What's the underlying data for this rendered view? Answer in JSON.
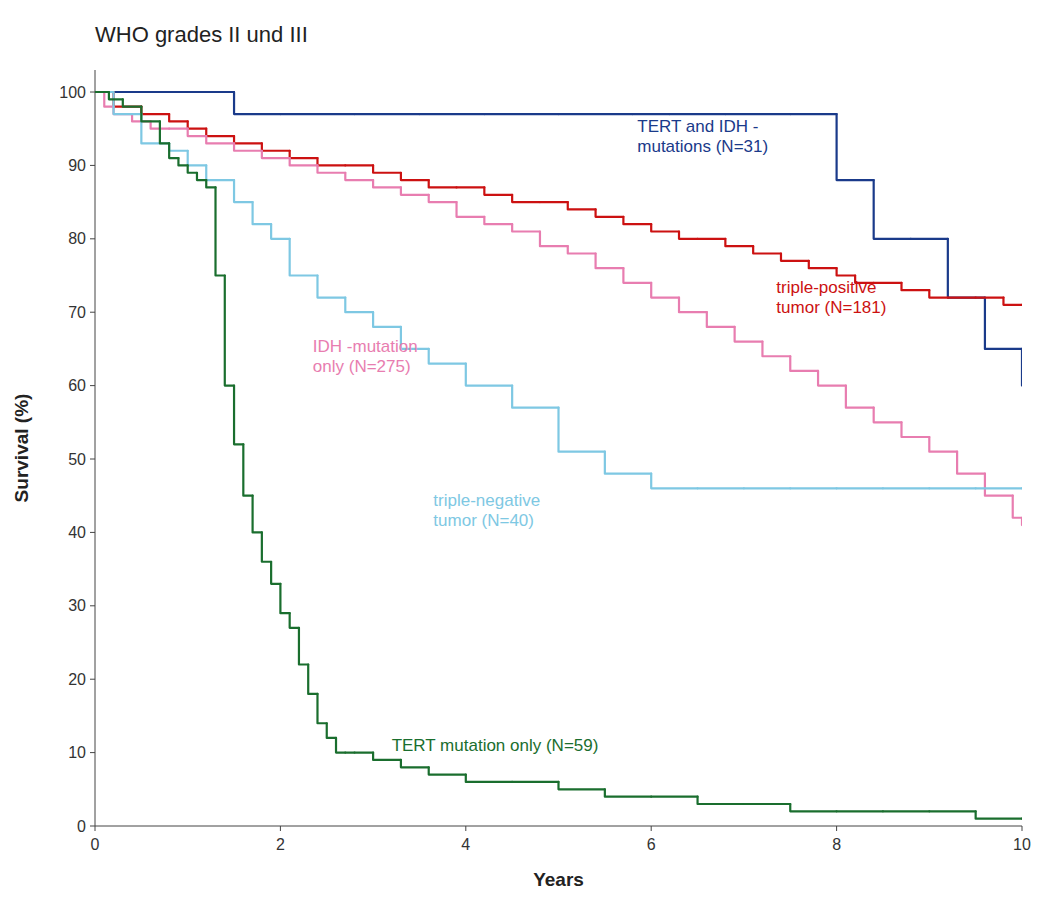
{
  "chart_data": {
    "type": "step",
    "title": "WHO grades II und III",
    "x_label": "Years",
    "y_label": "Survival (%)",
    "xlim": [
      0,
      10
    ],
    "ylim": [
      0,
      103
    ],
    "xticks": [
      0,
      2,
      4,
      6,
      8,
      10
    ],
    "yticks": [
      0,
      10,
      20,
      30,
      40,
      50,
      60,
      70,
      80,
      90,
      100
    ],
    "grid": false,
    "series": [
      {
        "color": "#1a3a8a",
        "x": [
          0,
          0.3,
          0.5,
          1.0,
          1.5,
          2.0,
          2.8,
          3.5,
          4.2,
          5.0,
          5.8,
          6.2,
          6.8,
          7.5,
          8.0,
          8.4,
          8.8,
          9.2,
          9.6,
          10.0
        ],
        "values": [
          100,
          100,
          100,
          100,
          97,
          97,
          97,
          97,
          97,
          97,
          97,
          97,
          97,
          97,
          88,
          80,
          80,
          72,
          65,
          60
        ]
      },
      {
        "color": "#cc1111",
        "x": [
          0,
          0.2,
          0.5,
          0.8,
          1.0,
          1.2,
          1.5,
          1.8,
          2.1,
          2.4,
          2.7,
          3.0,
          3.3,
          3.6,
          3.9,
          4.2,
          4.5,
          4.8,
          5.1,
          5.4,
          5.7,
          6.0,
          6.3,
          6.5,
          6.8,
          7.1,
          7.4,
          7.7,
          8.0,
          8.2,
          8.4,
          8.7,
          9.0,
          9.2,
          9.5,
          9.8,
          10.0
        ],
        "values": [
          100,
          98,
          97,
          96,
          95,
          94,
          93,
          92,
          91,
          90,
          90,
          89,
          88,
          87,
          87,
          86,
          85,
          85,
          84,
          83,
          82,
          81,
          80,
          80,
          79,
          78,
          77,
          76,
          75,
          74,
          74,
          73,
          72,
          72,
          72,
          71,
          71
        ]
      },
      {
        "color": "#e87db0",
        "x": [
          0,
          0.1,
          0.2,
          0.4,
          0.6,
          0.8,
          1.0,
          1.2,
          1.5,
          1.8,
          2.1,
          2.4,
          2.7,
          3.0,
          3.3,
          3.6,
          3.9,
          4.2,
          4.5,
          4.8,
          5.1,
          5.4,
          5.7,
          6.0,
          6.3,
          6.6,
          6.9,
          7.2,
          7.5,
          7.8,
          8.1,
          8.4,
          8.7,
          9.0,
          9.3,
          9.6,
          9.9,
          10.0
        ],
        "values": [
          100,
          98,
          97,
          96,
          95,
          95,
          94,
          93,
          92,
          91,
          90,
          89,
          88,
          87,
          86,
          85,
          83,
          82,
          81,
          79,
          78,
          76,
          74,
          72,
          70,
          68,
          66,
          64,
          62,
          60,
          57,
          55,
          53,
          51,
          48,
          45,
          42,
          41
        ]
      },
      {
        "color": "#7ec8e3",
        "x": [
          0,
          0.2,
          0.5,
          0.8,
          1.0,
          1.2,
          1.5,
          1.7,
          1.9,
          2.1,
          2.4,
          2.7,
          3.0,
          3.3,
          3.6,
          4.0,
          4.5,
          5.0,
          5.5,
          6.0,
          6.5,
          7.0,
          7.5,
          8.0,
          8.5,
          9.0,
          9.5,
          10.0
        ],
        "values": [
          100,
          97,
          93,
          92,
          90,
          88,
          85,
          82,
          80,
          75,
          72,
          70,
          68,
          65,
          63,
          60,
          57,
          51,
          48,
          46,
          46,
          46,
          46,
          46,
          46,
          46,
          46,
          46
        ]
      },
      {
        "color": "#1a6e2e",
        "x": [
          0,
          0.15,
          0.3,
          0.5,
          0.7,
          0.8,
          0.9,
          1.0,
          1.1,
          1.2,
          1.3,
          1.4,
          1.5,
          1.6,
          1.7,
          1.8,
          1.9,
          2.0,
          2.1,
          2.2,
          2.3,
          2.4,
          2.5,
          2.6,
          2.7,
          2.8,
          3.0,
          3.3,
          3.6,
          4.0,
          4.5,
          5.0,
          5.5,
          6.0,
          6.5,
          7.0,
          7.5,
          8.0,
          8.5,
          9.0,
          9.5,
          10.0
        ],
        "values": [
          100,
          99,
          98,
          96,
          93,
          91,
          90,
          89,
          88,
          87,
          75,
          60,
          52,
          45,
          40,
          36,
          33,
          29,
          27,
          22,
          18,
          14,
          12,
          10,
          10,
          10,
          9,
          8,
          7,
          6,
          6,
          5,
          4,
          4,
          3,
          3,
          2,
          2,
          2,
          2,
          1,
          1
        ]
      }
    ],
    "annotations": [
      {
        "text": "TERT and IDH -\nmutations (N=31)",
        "x": 5.85,
        "y": 94,
        "color": "#1a3a8a"
      },
      {
        "text": "triple-positive\ntumor (N=181)",
        "x": 7.35,
        "y": 72,
        "color": "#cc1111"
      },
      {
        "text": "IDH -mutation\nonly (N=275)",
        "x": 2.35,
        "y": 64,
        "color": "#e87db0"
      },
      {
        "text": "triple-negative\ntumor (N=40)",
        "x": 3.65,
        "y": 43,
        "color": "#7ec8e3"
      },
      {
        "text": "TERT mutation only (N=59)",
        "x": 3.2,
        "y": 11,
        "color": "#1a6e2e"
      }
    ]
  }
}
